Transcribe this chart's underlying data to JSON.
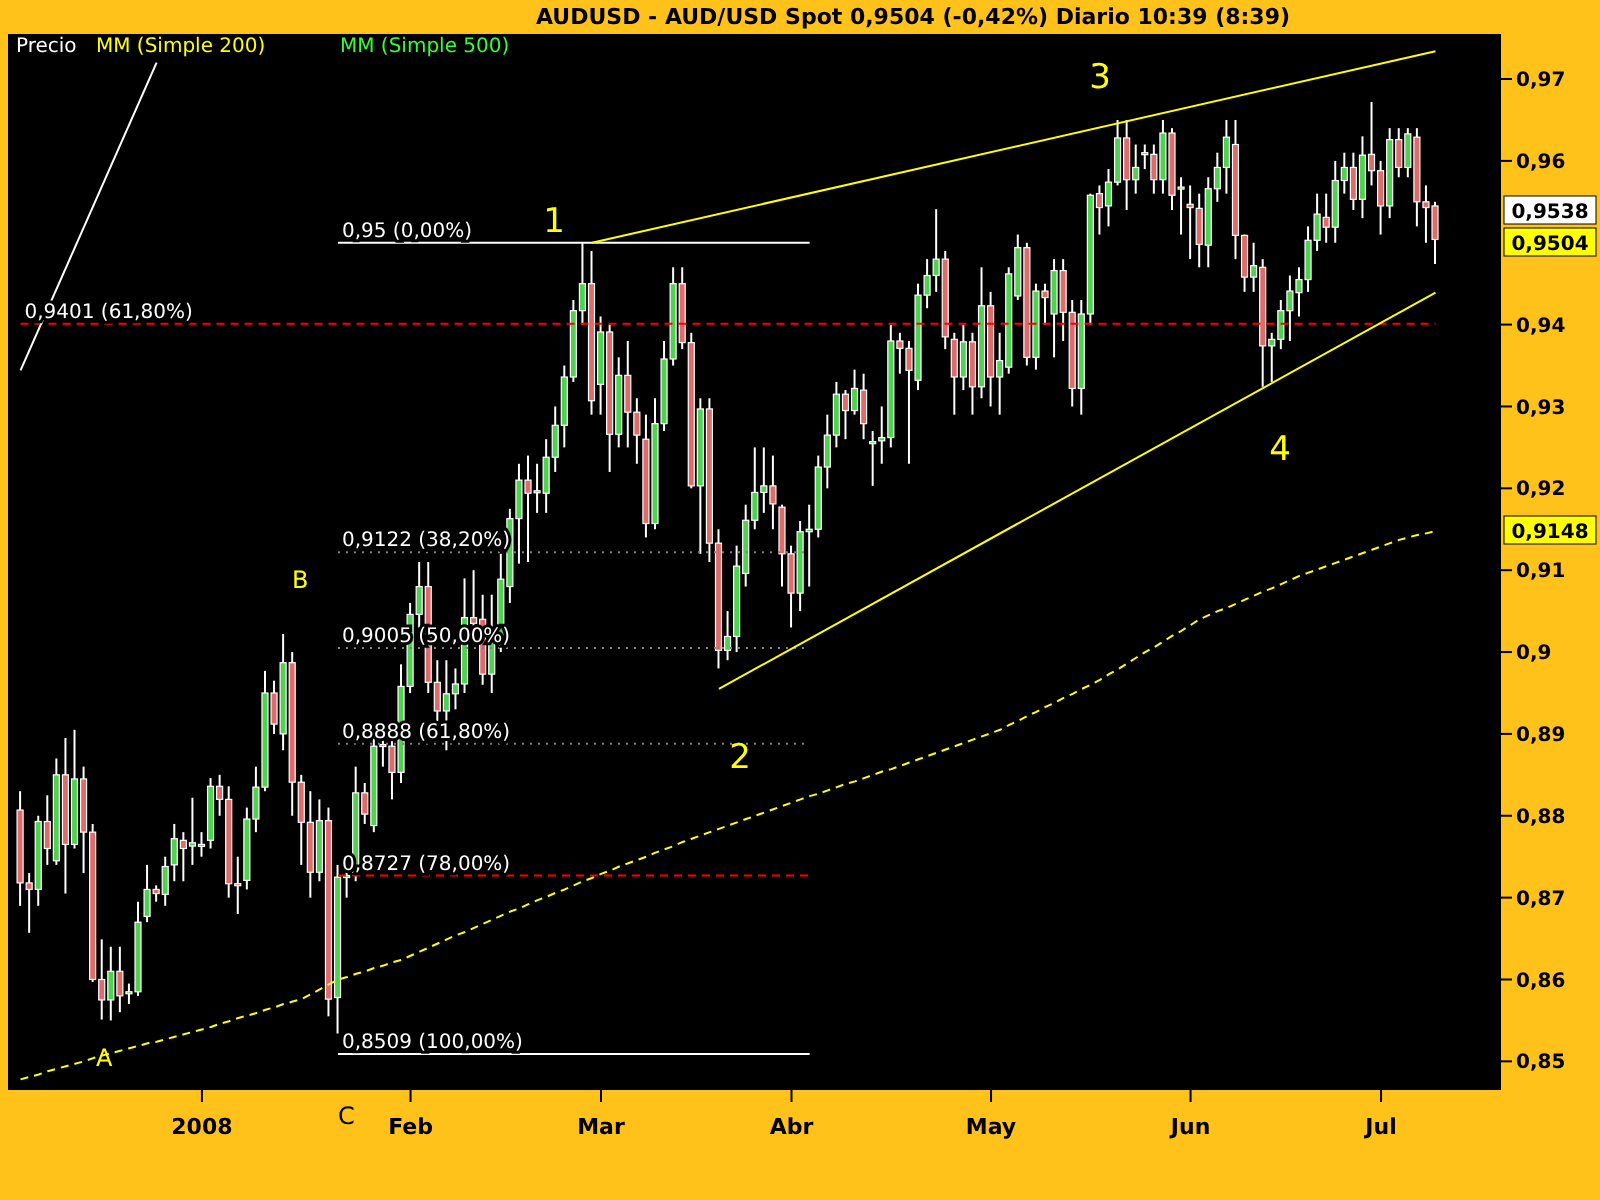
{
  "chart_data": {
    "type": "candlestick",
    "title": "AUDUSD - AUD/USD Spot    0,9504 (-0,42%)    Diario    10:39 (8:39)",
    "categories": [
      null,
      null,
      null,
      null,
      null,
      null,
      null,
      null,
      null,
      null,
      null,
      null,
      null,
      null,
      null,
      null,
      null,
      null,
      null,
      null,
      "2008",
      null,
      null,
      null,
      null,
      null,
      null,
      null,
      null,
      null,
      null,
      null,
      null,
      null,
      null,
      null,
      null,
      null,
      null,
      null,
      null,
      null,
      null,
      "Feb",
      null,
      null,
      null,
      null,
      null,
      null,
      null,
      null,
      null,
      null,
      null,
      null,
      null,
      null,
      null,
      null,
      null,
      null,
      null,
      null,
      "Mar",
      null,
      null,
      null,
      null,
      null,
      null,
      null,
      null,
      null,
      null,
      null,
      null,
      null,
      null,
      null,
      null,
      null,
      null,
      null,
      null,
      "Abr",
      null,
      null,
      null,
      null,
      null,
      null,
      null,
      null,
      null,
      null,
      null,
      null,
      null,
      null,
      null,
      null,
      null,
      null,
      null,
      null,
      null,
      "May",
      null,
      null,
      null,
      null,
      null,
      null,
      null,
      null,
      null,
      null,
      null,
      null,
      null,
      null,
      null,
      null,
      null,
      null,
      null,
      null,
      null,
      "Jun",
      null,
      null,
      null,
      null,
      null,
      null,
      null,
      null,
      null,
      null,
      null,
      null,
      null,
      null,
      null,
      null,
      null,
      null,
      null,
      null,
      "Jul",
      null,
      null,
      null,
      null,
      null,
      null
    ],
    "series": [
      {
        "type": "candlestick",
        "color": "#ffffff",
        "ohlc": [
          [
            0.8807,
            0.883,
            0.869,
            0.8718
          ],
          [
            0.8718,
            0.873,
            0.8657,
            0.871
          ],
          [
            0.871,
            0.88,
            0.869,
            0.8793
          ],
          [
            0.8793,
            0.8825,
            0.874,
            0.876
          ],
          [
            0.8745,
            0.887,
            0.874,
            0.885
          ],
          [
            0.885,
            0.8895,
            0.8705,
            0.8765
          ],
          [
            0.8765,
            0.8905,
            0.876,
            0.8845
          ],
          [
            0.8845,
            0.886,
            0.873,
            0.878
          ],
          [
            0.878,
            0.879,
            0.8597,
            0.86
          ],
          [
            0.86,
            0.8649,
            0.8551,
            0.8575
          ],
          [
            0.8575,
            0.864,
            0.855,
            0.861
          ],
          [
            0.861,
            0.864,
            0.856,
            0.858
          ],
          [
            0.8583,
            0.8595,
            0.857,
            0.8585
          ],
          [
            0.8585,
            0.8695,
            0.858,
            0.867
          ],
          [
            0.8677,
            0.874,
            0.867,
            0.871
          ],
          [
            0.871,
            0.8715,
            0.8695,
            0.8705
          ],
          [
            0.8704,
            0.875,
            0.869,
            0.8738
          ],
          [
            0.874,
            0.879,
            0.872,
            0.8772
          ],
          [
            0.877,
            0.878,
            0.872,
            0.876
          ],
          [
            0.8763,
            0.8822,
            0.874,
            0.8767
          ],
          [
            0.8763,
            0.878,
            0.875,
            0.8765
          ],
          [
            0.877,
            0.8846,
            0.876,
            0.8836
          ],
          [
            0.8836,
            0.885,
            0.88,
            0.882
          ],
          [
            0.882,
            0.8836,
            0.87,
            0.8717
          ],
          [
            0.8717,
            0.875,
            0.868,
            0.8715
          ],
          [
            0.8721,
            0.881,
            0.871,
            0.8796
          ],
          [
            0.8796,
            0.886,
            0.878,
            0.8835
          ],
          [
            0.8835,
            0.8977,
            0.883,
            0.895
          ],
          [
            0.895,
            0.8965,
            0.89,
            0.8912
          ],
          [
            0.89,
            0.9022,
            0.888,
            0.8987
          ],
          [
            0.8987,
            0.9,
            0.88,
            0.8841
          ],
          [
            0.8841,
            0.885,
            0.874,
            0.8792
          ],
          [
            0.8792,
            0.883,
            0.87,
            0.8731
          ],
          [
            0.8731,
            0.882,
            0.872,
            0.8794
          ],
          [
            0.8794,
            0.881,
            0.8555,
            0.8576
          ],
          [
            0.8578,
            0.874,
            0.8534,
            0.8725
          ],
          [
            0.8725,
            0.874,
            0.87,
            0.8727
          ],
          [
            0.8731,
            0.886,
            0.872,
            0.8828
          ],
          [
            0.8828,
            0.884,
            0.879,
            0.8802
          ],
          [
            0.8788,
            0.8905,
            0.878,
            0.8885
          ],
          [
            0.8885,
            0.89,
            0.886,
            0.8887
          ],
          [
            0.8885,
            0.89,
            0.882,
            0.8853
          ],
          [
            0.8853,
            0.8985,
            0.884,
            0.8958
          ],
          [
            0.8958,
            0.906,
            0.895,
            0.9046
          ],
          [
            0.9046,
            0.911,
            0.903,
            0.908
          ],
          [
            0.908,
            0.911,
            0.895,
            0.8963
          ],
          [
            0.8963,
            0.899,
            0.89,
            0.8928
          ],
          [
            0.8928,
            0.899,
            0.888,
            0.8949
          ],
          [
            0.8949,
            0.898,
            0.893,
            0.8961
          ],
          [
            0.8961,
            0.909,
            0.895,
            0.9042
          ],
          [
            0.9042,
            0.91,
            0.901,
            0.9035
          ],
          [
            0.904,
            0.907,
            0.896,
            0.8973
          ],
          [
            0.8973,
            0.907,
            0.895,
            0.9022
          ],
          [
            0.9019,
            0.912,
            0.9,
            0.9089
          ],
          [
            0.908,
            0.9175,
            0.906,
            0.9163
          ],
          [
            0.9163,
            0.923,
            0.9108,
            0.921
          ],
          [
            0.921,
            0.924,
            0.911,
            0.9194
          ],
          [
            0.9195,
            0.923,
            0.917,
            0.9197
          ],
          [
            0.9194,
            0.926,
            0.917,
            0.9238
          ],
          [
            0.9238,
            0.93,
            0.922,
            0.9277
          ],
          [
            0.9277,
            0.935,
            0.925,
            0.9336
          ],
          [
            0.9336,
            0.943,
            0.933,
            0.9417
          ],
          [
            0.9417,
            0.95,
            0.94,
            0.945
          ],
          [
            0.945,
            0.949,
            0.929,
            0.9307
          ],
          [
            0.9327,
            0.941,
            0.929,
            0.9391
          ],
          [
            0.9391,
            0.94,
            0.922,
            0.9266
          ],
          [
            0.9266,
            0.936,
            0.925,
            0.9338
          ],
          [
            0.9338,
            0.938,
            0.925,
            0.9293
          ],
          [
            0.9293,
            0.931,
            0.923,
            0.9265
          ],
          [
            0.926,
            0.929,
            0.914,
            0.9157
          ],
          [
            0.9157,
            0.931,
            0.915,
            0.9279
          ],
          [
            0.9279,
            0.938,
            0.927,
            0.9358
          ],
          [
            0.9358,
            0.947,
            0.935,
            0.945
          ],
          [
            0.945,
            0.947,
            0.937,
            0.9378
          ],
          [
            0.9378,
            0.939,
            0.92,
            0.9203
          ],
          [
            0.9203,
            0.931,
            0.912,
            0.9297
          ],
          [
            0.9297,
            0.931,
            0.911,
            0.9133
          ],
          [
            0.9133,
            0.915,
            0.898,
            0.9002
          ],
          [
            0.9002,
            0.905,
            0.899,
            0.9019
          ],
          [
            0.9019,
            0.913,
            0.9,
            0.9105
          ],
          [
            0.9096,
            0.918,
            0.908,
            0.9161
          ],
          [
            0.9161,
            0.925,
            0.915,
            0.9195
          ],
          [
            0.9195,
            0.925,
            0.917,
            0.9203
          ],
          [
            0.9203,
            0.924,
            0.915,
            0.9181
          ],
          [
            0.9177,
            0.918,
            0.908,
            0.912
          ],
          [
            0.912,
            0.913,
            0.903,
            0.9072
          ],
          [
            0.9072,
            0.916,
            0.905,
            0.9147
          ],
          [
            0.9147,
            0.918,
            0.908,
            0.915
          ],
          [
            0.915,
            0.924,
            0.914,
            0.9226
          ],
          [
            0.9226,
            0.929,
            0.92,
            0.9265
          ],
          [
            0.9265,
            0.933,
            0.925,
            0.9315
          ],
          [
            0.9315,
            0.932,
            0.926,
            0.9295
          ],
          [
            0.9295,
            0.9345,
            0.929,
            0.9322
          ],
          [
            0.932,
            0.934,
            0.926,
            0.9279
          ],
          [
            0.9255,
            0.927,
            0.9203,
            0.9257
          ],
          [
            0.9258,
            0.93,
            0.923,
            0.9262
          ],
          [
            0.9262,
            0.94,
            0.925,
            0.938
          ],
          [
            0.938,
            0.939,
            0.934,
            0.9371
          ],
          [
            0.9371,
            0.938,
            0.923,
            0.9344
          ],
          [
            0.9332,
            0.945,
            0.932,
            0.9436
          ],
          [
            0.9436,
            0.948,
            0.942,
            0.946
          ],
          [
            0.946,
            0.9541,
            0.944,
            0.948
          ],
          [
            0.948,
            0.949,
            0.937,
            0.9385
          ],
          [
            0.9382,
            0.939,
            0.929,
            0.9336
          ],
          [
            0.9336,
            0.94,
            0.932,
            0.9379
          ],
          [
            0.9379,
            0.939,
            0.929,
            0.9324
          ],
          [
            0.9324,
            0.947,
            0.931,
            0.9423
          ],
          [
            0.9423,
            0.944,
            0.93,
            0.9336
          ],
          [
            0.9336,
            0.939,
            0.929,
            0.9356
          ],
          [
            0.9348,
            0.947,
            0.934,
            0.9462
          ],
          [
            0.9435,
            0.951,
            0.943,
            0.9494
          ],
          [
            0.9494,
            0.95,
            0.935,
            0.936
          ],
          [
            0.936,
            0.945,
            0.9345,
            0.9441
          ],
          [
            0.9441,
            0.945,
            0.94,
            0.9433
          ],
          [
            0.9413,
            0.948,
            0.936,
            0.9466
          ],
          [
            0.9466,
            0.948,
            0.938,
            0.9415
          ],
          [
            0.9415,
            0.943,
            0.93,
            0.9322
          ],
          [
            0.9322,
            0.943,
            0.929,
            0.9413
          ],
          [
            0.9413,
            0.956,
            0.94,
            0.9558
          ],
          [
            0.956,
            0.957,
            0.951,
            0.9543
          ],
          [
            0.9545,
            0.959,
            0.952,
            0.9574
          ],
          [
            0.9574,
            0.965,
            0.957,
            0.9628
          ],
          [
            0.9628,
            0.965,
            0.954,
            0.9577
          ],
          [
            0.9577,
            0.962,
            0.956,
            0.9592
          ],
          [
            0.9608,
            0.962,
            0.959,
            0.961
          ],
          [
            0.9608,
            0.962,
            0.956,
            0.9577
          ],
          [
            0.9577,
            0.965,
            0.956,
            0.9634
          ],
          [
            0.9634,
            0.964,
            0.954,
            0.9558
          ],
          [
            0.9567,
            0.958,
            0.951,
            0.9568
          ],
          [
            0.9547,
            0.957,
            0.948,
            0.9543
          ],
          [
            0.9542,
            0.956,
            0.947,
            0.9498
          ],
          [
            0.9497,
            0.958,
            0.947,
            0.9566
          ],
          [
            0.9566,
            0.961,
            0.955,
            0.9592
          ],
          [
            0.9592,
            0.965,
            0.956,
            0.9629
          ],
          [
            0.962,
            0.965,
            0.948,
            0.9509
          ],
          [
            0.9509,
            0.951,
            0.944,
            0.9458
          ],
          [
            0.9458,
            0.95,
            0.944,
            0.9472
          ],
          [
            0.947,
            0.948,
            0.9324,
            0.9374
          ],
          [
            0.9374,
            0.939,
            0.933,
            0.9382
          ],
          [
            0.9382,
            0.943,
            0.937,
            0.9417
          ],
          [
            0.9417,
            0.946,
            0.938,
            0.9441
          ],
          [
            0.9439,
            0.947,
            0.941,
            0.9455
          ],
          [
            0.9455,
            0.952,
            0.944,
            0.9503
          ],
          [
            0.9503,
            0.956,
            0.949,
            0.9535
          ],
          [
            0.9531,
            0.956,
            0.95,
            0.9519
          ],
          [
            0.9519,
            0.96,
            0.95,
            0.9576
          ],
          [
            0.9576,
            0.961,
            0.956,
            0.9592
          ],
          [
            0.9592,
            0.961,
            0.954,
            0.9553
          ],
          [
            0.9553,
            0.963,
            0.953,
            0.9607
          ],
          [
            0.9608,
            0.9672,
            0.957,
            0.9588
          ],
          [
            0.9588,
            0.96,
            0.951,
            0.9545
          ],
          [
            0.9545,
            0.964,
            0.953,
            0.9626
          ],
          [
            0.9626,
            0.964,
            0.958,
            0.9592
          ],
          [
            0.9592,
            0.964,
            0.958,
            0.9633
          ],
          [
            0.9629,
            0.964,
            0.952,
            0.955
          ],
          [
            0.955,
            0.957,
            0.95,
            0.9543
          ],
          [
            0.9545,
            0.955,
            0.9474,
            0.9504
          ]
        ]
      },
      {
        "name": "MM (Simple 200)",
        "type": "line",
        "color": "#ffff00",
        "line_style": "dashed",
        "values": [
          0.8478,
          0.8481,
          0.8484,
          0.8488,
          0.8491,
          0.8494,
          0.8497,
          0.85,
          0.8504,
          0.8507,
          0.851,
          0.8513,
          0.8516,
          0.8519,
          0.8522,
          0.8524,
          0.8527,
          0.853,
          0.8533,
          0.8536,
          0.8539,
          0.8542,
          0.8546,
          0.8549,
          0.8553,
          0.8556,
          0.8559,
          0.8563,
          0.8566,
          0.857,
          0.8573,
          0.8576,
          0.8582,
          0.8588,
          0.8594,
          0.86,
          0.8603,
          0.8607,
          0.861,
          0.8614,
          0.8617,
          0.8621,
          0.8624,
          0.8629,
          0.8634,
          0.8639,
          0.8644,
          0.8649,
          0.8654,
          0.8658,
          0.8663,
          0.8668,
          0.8673,
          0.8678,
          0.8683,
          0.8687,
          0.8692,
          0.8697,
          0.8701,
          0.8706,
          0.871,
          0.8715,
          0.872,
          0.8724,
          0.8729,
          0.8733,
          0.8738,
          0.8742,
          0.8746,
          0.875,
          0.8755,
          0.8759,
          0.8763,
          0.8768,
          0.8772,
          0.8776,
          0.878,
          0.8784,
          0.8788,
          0.8792,
          0.8796,
          0.88,
          0.8804,
          0.8808,
          0.8812,
          0.8816,
          0.882,
          0.8824,
          0.8827,
          0.8831,
          0.8835,
          0.8839,
          0.8842,
          0.8846,
          0.885,
          0.8854,
          0.8857,
          0.8861,
          0.8865,
          0.8869,
          0.8873,
          0.8877,
          0.8881,
          0.8885,
          0.8889,
          0.8893,
          0.8897,
          0.8901,
          0.8905,
          0.8911,
          0.8916,
          0.8922,
          0.8927,
          0.8933,
          0.8938,
          0.8944,
          0.8949,
          0.8955,
          0.896,
          0.8966,
          0.8973,
          0.8979,
          0.8986,
          0.8993,
          0.9,
          0.9006,
          0.9013,
          0.902,
          0.9026,
          0.9033,
          0.904,
          0.9045,
          0.905,
          0.9054,
          0.9059,
          0.9064,
          0.9069,
          0.9074,
          0.9078,
          0.9083,
          0.9088,
          0.9093,
          0.9097,
          0.9101,
          0.9105,
          0.9109,
          0.9113,
          0.9117,
          0.9121,
          0.9125,
          0.9129,
          0.9133,
          0.9137,
          0.914,
          0.9143,
          0.9145,
          0.9148
        ]
      },
      {
        "type": "line",
        "color": "#ffff00",
        "line_style": "solid",
        "values": [
          null,
          null,
          null,
          null,
          null,
          null,
          null,
          null,
          null,
          null,
          null,
          null,
          null,
          null,
          null,
          null,
          null,
          null,
          null,
          null,
          null,
          null,
          null,
          null,
          null,
          null,
          null,
          null,
          null,
          null,
          null,
          null,
          null,
          null,
          null,
          null,
          null,
          null,
          null,
          null,
          null,
          null,
          null,
          null,
          null,
          null,
          null,
          null,
          null,
          null,
          null,
          null,
          null,
          null,
          null,
          null,
          null,
          null,
          null,
          null,
          null,
          null,
          null,
          0.95,
          null,
          null,
          null,
          null,
          null,
          null,
          null,
          null,
          null,
          null,
          null,
          null,
          null,
          null,
          null,
          null,
          null,
          null,
          null,
          null,
          null,
          null,
          null,
          null,
          null,
          null,
          null,
          null,
          null,
          null,
          null,
          null,
          null,
          null,
          null,
          null,
          null,
          null,
          null,
          null,
          null,
          null,
          null,
          null,
          null,
          null,
          null,
          null,
          null,
          null,
          null,
          null,
          null,
          null,
          null,
          null,
          null,
          null,
          null,
          null,
          null,
          null,
          null,
          null,
          null,
          null,
          null,
          null,
          null,
          null,
          null,
          null,
          null,
          null,
          null,
          null,
          null,
          null,
          null,
          null,
          null,
          null,
          null,
          null,
          null,
          null,
          null,
          null,
          null,
          null,
          null,
          null,
          0.9734
        ]
      },
      {
        "type": "line",
        "color": "#ffff00",
        "line_style": "solid",
        "values": [
          null,
          null,
          null,
          null,
          null,
          null,
          null,
          null,
          null,
          null,
          null,
          null,
          null,
          null,
          null,
          null,
          null,
          null,
          null,
          null,
          null,
          null,
          null,
          null,
          null,
          null,
          null,
          null,
          null,
          null,
          null,
          null,
          null,
          null,
          null,
          null,
          null,
          null,
          null,
          null,
          null,
          null,
          null,
          null,
          null,
          null,
          null,
          null,
          null,
          null,
          null,
          null,
          null,
          null,
          null,
          null,
          null,
          null,
          null,
          null,
          null,
          null,
          null,
          null,
          null,
          null,
          null,
          null,
          null,
          null,
          null,
          null,
          null,
          null,
          null,
          null,
          null,
          0.8955,
          null,
          null,
          null,
          null,
          null,
          null,
          null,
          null,
          null,
          null,
          null,
          null,
          null,
          null,
          null,
          null,
          null,
          null,
          null,
          null,
          null,
          null,
          null,
          null,
          null,
          null,
          null,
          null,
          null,
          null,
          null,
          null,
          null,
          null,
          null,
          null,
          null,
          null,
          null,
          null,
          null,
          null,
          null,
          null,
          null,
          null,
          null,
          null,
          null,
          null,
          null,
          null,
          null,
          null,
          null,
          null,
          null,
          null,
          null,
          null,
          null,
          null,
          null,
          null,
          null,
          null,
          null,
          null,
          null,
          null,
          null,
          null,
          null,
          null,
          null,
          null,
          null,
          null,
          0.9439
        ]
      },
      {
        "type": "line",
        "color": "#ffffff",
        "line_style": "solid",
        "values": [
          0.9344,
          null,
          null,
          null,
          null,
          null,
          null,
          null,
          null,
          null,
          null,
          null,
          null,
          null,
          null,
          0.972,
          null,
          null,
          null,
          null,
          null,
          null,
          null,
          null,
          null,
          null,
          null,
          null,
          null,
          null,
          null,
          null,
          null,
          null,
          null,
          null,
          null,
          null,
          null,
          null,
          null,
          null,
          null,
          null,
          null,
          null,
          null,
          null,
          null,
          null,
          null,
          null,
          null,
          null,
          null,
          null,
          null,
          null,
          null,
          null,
          null,
          null,
          null,
          null,
          null,
          null,
          null,
          null,
          null,
          null,
          null,
          null,
          null,
          null,
          null,
          null,
          null,
          null,
          null,
          null,
          null,
          null,
          null,
          null,
          null,
          null,
          null,
          null,
          null,
          null,
          null,
          null,
          null,
          null,
          null,
          null,
          null,
          null,
          null,
          null,
          null,
          null,
          null,
          null,
          null,
          null,
          null,
          null,
          null,
          null,
          null,
          null,
          null,
          null,
          null,
          null,
          null,
          null,
          null,
          null,
          null,
          null,
          null,
          null,
          null,
          null,
          null,
          null,
          null,
          null,
          null,
          null,
          null,
          null,
          null,
          null,
          null,
          null,
          null,
          null,
          null,
          null,
          null,
          null,
          null,
          null,
          null,
          null,
          null,
          null,
          null,
          null,
          null,
          null,
          null,
          null,
          null
        ]
      }
    ],
    "ylim": [
      0.8465,
      0.9755
    ],
    "yticks": [
      {
        "value": 0.97,
        "label": "0,97"
      },
      {
        "value": 0.96,
        "label": "0,96"
      },
      {
        "value": 0.94,
        "label": "0,94"
      },
      {
        "value": 0.93,
        "label": "0,93"
      },
      {
        "value": 0.92,
        "label": "0,92"
      },
      {
        "value": 0.91,
        "label": "0,91"
      },
      {
        "value": 0.9,
        "label": "0,9"
      },
      {
        "value": 0.89,
        "label": "0,89"
      },
      {
        "value": 0.88,
        "label": "0,88"
      },
      {
        "value": 0.87,
        "label": "0,87"
      },
      {
        "value": 0.86,
        "label": "0,86"
      },
      {
        "value": 0.85,
        "label": "0,85"
      }
    ],
    "ref_lines": [
      {
        "axis": "y",
        "value": 0.95,
        "label": "0,95 (0,00%)",
        "color": "#ffffff",
        "line_style": "solid"
      },
      {
        "axis": "y",
        "value": 0.9401,
        "label": "0,9401 (61,80%)",
        "color": "#ff0000",
        "line_style": "dashed"
      },
      {
        "axis": "y",
        "value": 0.9122,
        "label": "0,9122 (38,20%)",
        "color": "#808080",
        "line_style": "dotted"
      },
      {
        "axis": "y",
        "value": 0.9005,
        "label": "0,9005 (50,00%)",
        "color": "#808080",
        "line_style": "dotted"
      },
      {
        "axis": "y",
        "value": 0.8888,
        "label": "0,8888 (61,80%)",
        "color": "#808080",
        "line_style": "dotted"
      },
      {
        "axis": "y",
        "value": 0.8727,
        "label": "0,8727 (78,00%)",
        "color": "#ff0000",
        "line_style": "dashed"
      },
      {
        "axis": "y",
        "value": 0.8509,
        "label": "0,8509 (100,00%)",
        "color": "#ffffff",
        "line_style": "solid"
      }
    ],
    "annotations": [
      "1",
      "2",
      "3",
      "4",
      "A",
      "B",
      "C",
      "MM (Simple 500)",
      "0,9538",
      "0,9504",
      "0,9148",
      "Precio"
    ],
    "legend": "top left"
  }
}
